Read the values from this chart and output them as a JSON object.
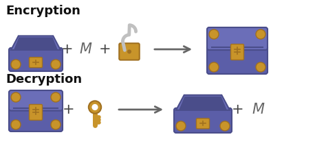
{
  "bg_color": "#ffffff",
  "chest_blue": "#5b5ea8",
  "chest_blue_dark": "#4a4d8a",
  "chest_lid_blue": "#6b6eb8",
  "chest_interior": "#4a4d8a",
  "gold": "#c8942a",
  "gold_dark": "#a07020",
  "lock_shackle": "#c0c0c0",
  "arrow_color": "#666666",
  "title_enc": "Encryption",
  "title_dec": "Decryption",
  "plus_color": "#444444",
  "m_color": "#666666",
  "title_color": "#111111"
}
